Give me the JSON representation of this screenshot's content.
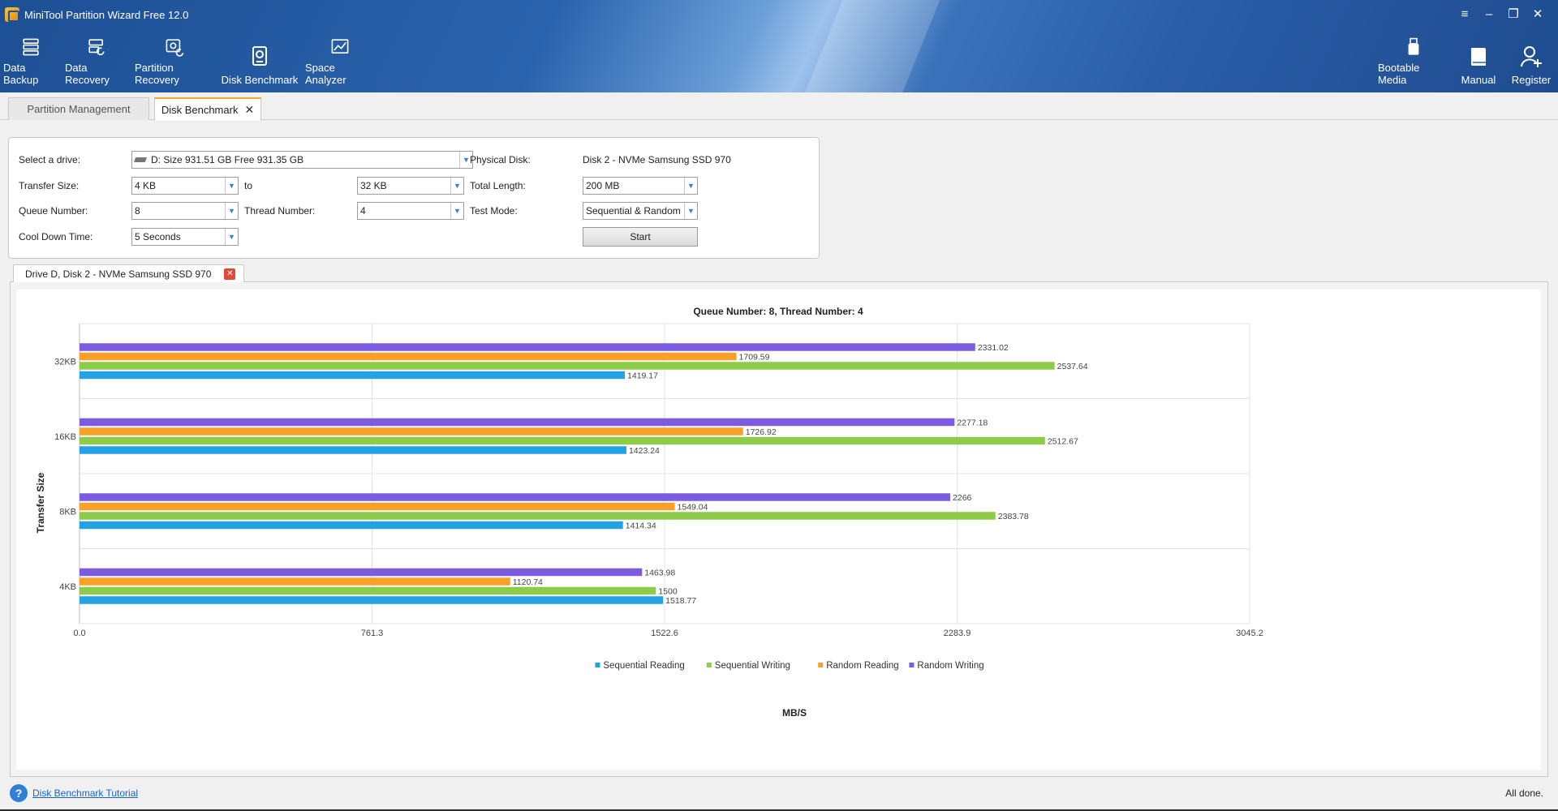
{
  "window": {
    "title": "MiniTool Partition Wizard Free 12.0",
    "controls": [
      "≡",
      "–",
      "❐",
      "✕"
    ]
  },
  "toolbar": {
    "left": [
      {
        "label": "Data Backup",
        "icon": "data-backup-icon"
      },
      {
        "label": "Data Recovery",
        "icon": "data-recovery-icon"
      },
      {
        "label": "Partition Recovery",
        "icon": "partition-recovery-icon"
      },
      {
        "label": "Disk Benchmark",
        "icon": "disk-benchmark-icon"
      },
      {
        "label": "Space Analyzer",
        "icon": "space-analyzer-icon"
      }
    ],
    "right": [
      {
        "label": "Bootable Media",
        "icon": "usb-icon"
      },
      {
        "label": "Manual",
        "icon": "book-icon"
      },
      {
        "label": "Register",
        "icon": "register-user-icon"
      }
    ]
  },
  "tabs": [
    {
      "label": "Partition Management"
    },
    {
      "label": "Disk Benchmark",
      "close": "✕"
    }
  ],
  "settings": {
    "select_drive_label": "Select a drive:",
    "select_drive_value": "D:  Size 931.51 GB  Free 931.35 GB",
    "physical_disk_label": "Physical Disk:",
    "physical_disk_value": "Disk 2 - NVMe Samsung SSD 970",
    "transfer_size_label": "Transfer Size:",
    "transfer_from": "4 KB",
    "to_label": "to",
    "transfer_to": "32 KB",
    "total_length_label": "Total Length:",
    "total_length_value": "200 MB",
    "queue_number_label": "Queue Number:",
    "queue_number_value": "8",
    "thread_number_label": "Thread Number:",
    "thread_number_value": "4",
    "test_mode_label": "Test Mode:",
    "test_mode_value": "Sequential & Random",
    "cool_down_label": "Cool Down Time:",
    "cool_down_value": "5 Seconds",
    "start_label": "Start"
  },
  "result_tab": {
    "label": "Drive D, Disk 2 - NVMe Samsung SSD 970",
    "close": "✕"
  },
  "chart_data": {
    "type": "bar",
    "orientation": "horizontal",
    "title": "Queue Number: 8, Thread Number: 4",
    "xlabel": "MB/S",
    "ylabel": "Transfer Size",
    "xlim": [
      0,
      3045.2
    ],
    "xticks": [
      "0.0",
      "761.3",
      "1522.6",
      "2283.9",
      "3045.2"
    ],
    "categories": [
      "32KB",
      "16KB",
      "8KB",
      "4KB"
    ],
    "series": [
      {
        "name": "Random Writing",
        "color": "#7b5ce0",
        "values": [
          2331.02,
          2277.18,
          2266,
          1463.98
        ]
      },
      {
        "name": "Random Reading",
        "color": "#f7a128",
        "values": [
          1709.59,
          1726.92,
          1549.04,
          1120.74
        ]
      },
      {
        "name": "Sequential Writing",
        "color": "#8fcb4a",
        "values": [
          2537.64,
          2512.67,
          2383.78,
          1500
        ]
      },
      {
        "name": "Sequential Reading",
        "color": "#25a2e3",
        "values": [
          1419.17,
          1423.24,
          1414.34,
          1518.77
        ]
      }
    ],
    "legend_order": [
      "Sequential Reading",
      "Sequential Writing",
      "Random Reading",
      "Random Writing"
    ],
    "legend_position": "bottom",
    "grid": true
  },
  "footer": {
    "help_link": "Disk Benchmark Tutorial",
    "status": "All done."
  }
}
